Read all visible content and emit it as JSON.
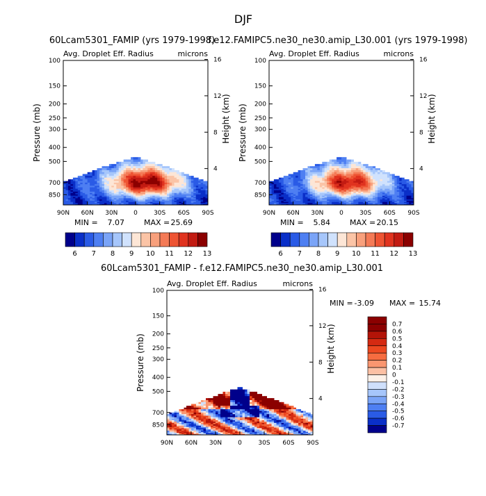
{
  "figure": {
    "title": "DJF"
  },
  "chart_data": [
    {
      "type": "heatmap",
      "title": "60Lcam5301_FAMIP (yrs 1979-1998)",
      "subtitle_left": "Avg. Droplet Eff. Radius",
      "subtitle_right": "microns",
      "xlabel": "",
      "ylabel": "Pressure (mb)",
      "y2label": "Height (km)",
      "x_ticks": [
        "90N",
        "60N",
        "30N",
        "0",
        "30S",
        "60S",
        "90S"
      ],
      "y_ticks": [
        "100",
        "150",
        "200",
        "250",
        "300",
        "400",
        "500",
        "700",
        "850"
      ],
      "y2_ticks": [
        "16",
        "12",
        "8",
        "4"
      ],
      "min_label": "MIN =",
      "min_value": "7.07",
      "max_label": "MAX =",
      "max_value": "25.69",
      "colorbar_levels": [
        "6",
        "7",
        "8",
        "9",
        "10",
        "11",
        "12",
        "13"
      ],
      "ylim": [
        100,
        1000
      ],
      "xlim": [
        90,
        -90
      ]
    },
    {
      "type": "heatmap",
      "title": "f.e12.FAMIPC5.ne30_ne30.amip_L30.001 (yrs 1979-1998)",
      "subtitle_left": "Avg. Droplet Eff. Radius",
      "subtitle_right": "microns",
      "xlabel": "",
      "ylabel": "Pressure (mb)",
      "y2label": "Height (km)",
      "x_ticks": [
        "90N",
        "60N",
        "30N",
        "0",
        "30S",
        "60S",
        "90S"
      ],
      "y_ticks": [
        "100",
        "150",
        "200",
        "250",
        "300",
        "400",
        "500",
        "700",
        "850"
      ],
      "y2_ticks": [
        "16",
        "12",
        "8",
        "4"
      ],
      "min_label": "MIN =",
      "min_value": "5.84",
      "max_label": "MAX =",
      "max_value": "20.15",
      "colorbar_levels": [
        "6",
        "7",
        "8",
        "9",
        "10",
        "11",
        "12",
        "13"
      ],
      "ylim": [
        100,
        1000
      ],
      "xlim": [
        90,
        -90
      ]
    },
    {
      "type": "heatmap",
      "title": "60Lcam5301_FAMIP - f.e12.FAMIPC5.ne30_ne30.amip_L30.001",
      "subtitle_left": "Avg. Droplet Eff. Radius",
      "subtitle_right": "microns",
      "xlabel": "",
      "ylabel": "Pressure (mb)",
      "y2label": "Height (km)",
      "x_ticks": [
        "90N",
        "60N",
        "30N",
        "0",
        "30S",
        "60S",
        "90S"
      ],
      "y_ticks": [
        "100",
        "150",
        "200",
        "250",
        "300",
        "400",
        "500",
        "700",
        "850"
      ],
      "y2_ticks": [
        "16",
        "12",
        "8",
        "4"
      ],
      "min_label": "MIN =",
      "min_value": "-3.09",
      "max_label": "MAX =",
      "max_value": "15.74",
      "colorbar_levels": [
        "0.7",
        "0.6",
        "0.5",
        "0.4",
        "0.3",
        "0.2",
        "0.1",
        "0",
        "-0.1",
        "-0.2",
        "-0.3",
        "-0.4",
        "-0.5",
        "-0.6",
        "-0.7"
      ],
      "ylim": [
        100,
        1000
      ],
      "xlim": [
        90,
        -90
      ]
    }
  ],
  "colors": {
    "seq": [
      "#00008b",
      "#0a2fc8",
      "#2a5be6",
      "#4e7ff2",
      "#7aa4f7",
      "#a6c6fb",
      "#d0e2fd",
      "#fde6d6",
      "#fbc4a6",
      "#f8a07c",
      "#f47a56",
      "#ee5433",
      "#e0331f",
      "#c21b12",
      "#8b0000"
    ],
    "diff": [
      "#8b0000",
      "#b31408",
      "#d42a12",
      "#ec4820",
      "#f66c40",
      "#fa9670",
      "#fcc0a4",
      "#fdf1e8",
      "#cfe0fc",
      "#a6c6fb",
      "#7aa4f7",
      "#4e7ff2",
      "#2a5be6",
      "#0a2fc8",
      "#00008b"
    ]
  }
}
